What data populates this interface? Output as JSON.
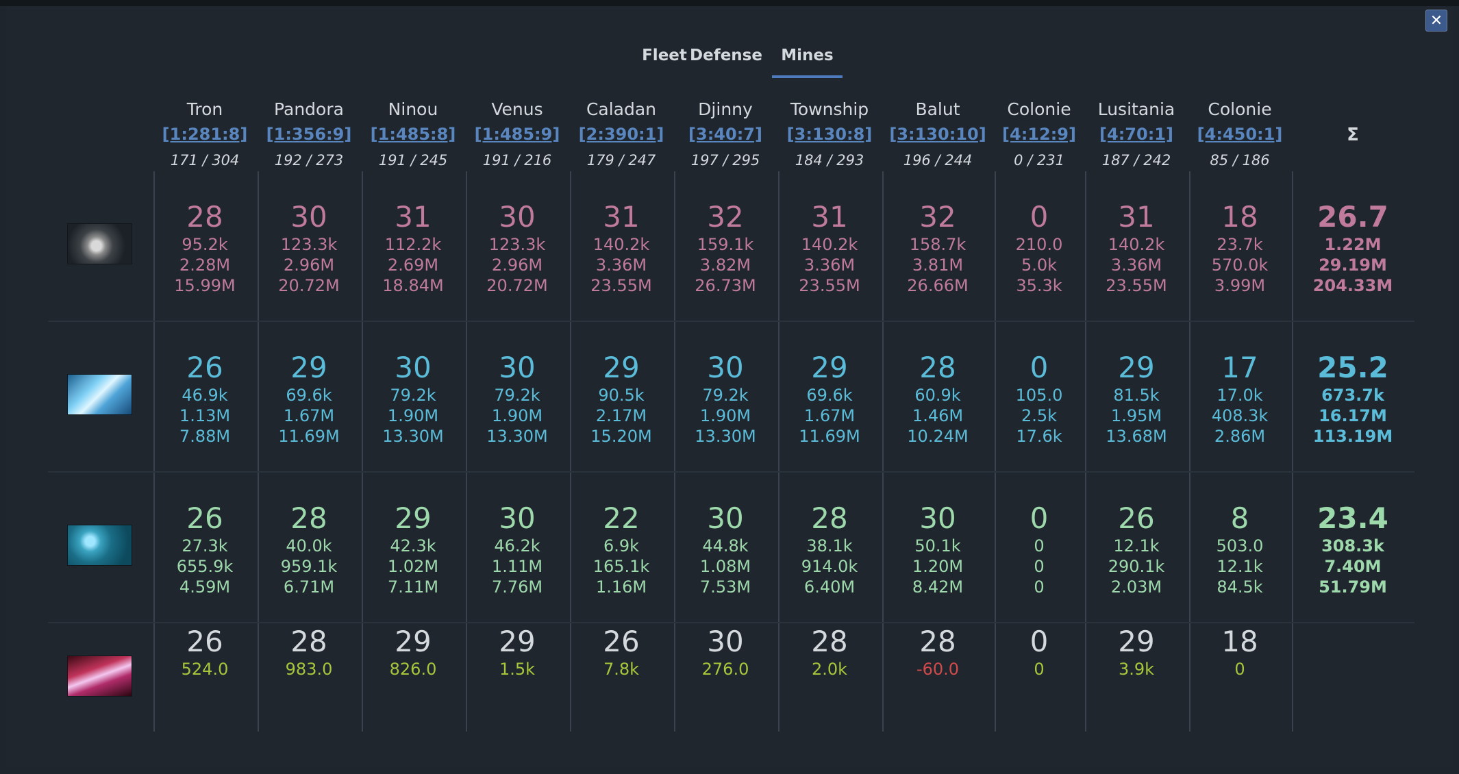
{
  "tabs": [
    "Fleet",
    "Defense",
    "Mines"
  ],
  "active_tab": "Mines",
  "close_label": "✕",
  "sigma_label": "Σ",
  "planets": [
    {
      "name": "Tron",
      "coords": "[1:281:8]",
      "fields": "171 / 304"
    },
    {
      "name": "Pandora",
      "coords": "[1:356:9]",
      "fields": "192 / 273"
    },
    {
      "name": "Ninou",
      "coords": "[1:485:8]",
      "fields": "191 / 245"
    },
    {
      "name": "Venus",
      "coords": "[1:485:9]",
      "fields": "191 / 216"
    },
    {
      "name": "Caladan",
      "coords": "[2:390:1]",
      "fields": "179 / 247"
    },
    {
      "name": "Djinny",
      "coords": "[3:40:7]",
      "fields": "197 / 295"
    },
    {
      "name": "Township",
      "coords": "[3:130:8]",
      "fields": "184 / 293"
    },
    {
      "name": "Balut",
      "coords": "[3:130:10]",
      "fields": "196 / 244"
    },
    {
      "name": "Colonie",
      "coords": "[4:12:9]",
      "fields": "0 / 231"
    },
    {
      "name": "Lusitania",
      "coords": "[4:70:1]",
      "fields": "187 / 242"
    },
    {
      "name": "Colonie",
      "coords": "[4:450:1]",
      "fields": "85 / 186"
    }
  ],
  "resources": [
    {
      "icon": "metal-ore-icon",
      "color": "#c07a9c",
      "cells": [
        {
          "level": "28",
          "lines": [
            "95.2k",
            "2.28M",
            "15.99M"
          ]
        },
        {
          "level": "30",
          "lines": [
            "123.3k",
            "2.96M",
            "20.72M"
          ]
        },
        {
          "level": "31",
          "lines": [
            "112.2k",
            "2.69M",
            "18.84M"
          ]
        },
        {
          "level": "30",
          "lines": [
            "123.3k",
            "2.96M",
            "20.72M"
          ]
        },
        {
          "level": "31",
          "lines": [
            "140.2k",
            "3.36M",
            "23.55M"
          ]
        },
        {
          "level": "32",
          "lines": [
            "159.1k",
            "3.82M",
            "26.73M"
          ]
        },
        {
          "level": "31",
          "lines": [
            "140.2k",
            "3.36M",
            "23.55M"
          ]
        },
        {
          "level": "32",
          "lines": [
            "158.7k",
            "3.81M",
            "26.66M"
          ]
        },
        {
          "level": "0",
          "lines": [
            "210.0",
            "5.0k",
            "35.3k"
          ]
        },
        {
          "level": "31",
          "lines": [
            "140.2k",
            "3.36M",
            "23.55M"
          ]
        },
        {
          "level": "18",
          "lines": [
            "23.7k",
            "570.0k",
            "3.99M"
          ]
        }
      ],
      "total": {
        "level": "26.7",
        "lines": [
          "1.22M",
          "29.19M",
          "204.33M"
        ]
      }
    },
    {
      "icon": "crystal-icon",
      "color": "#5bbcd9",
      "cells": [
        {
          "level": "26",
          "lines": [
            "46.9k",
            "1.13M",
            "7.88M"
          ]
        },
        {
          "level": "29",
          "lines": [
            "69.6k",
            "1.67M",
            "11.69M"
          ]
        },
        {
          "level": "30",
          "lines": [
            "79.2k",
            "1.90M",
            "13.30M"
          ]
        },
        {
          "level": "30",
          "lines": [
            "79.2k",
            "1.90M",
            "13.30M"
          ]
        },
        {
          "level": "29",
          "lines": [
            "90.5k",
            "2.17M",
            "15.20M"
          ]
        },
        {
          "level": "30",
          "lines": [
            "79.2k",
            "1.90M",
            "13.30M"
          ]
        },
        {
          "level": "29",
          "lines": [
            "69.6k",
            "1.67M",
            "11.69M"
          ]
        },
        {
          "level": "28",
          "lines": [
            "60.9k",
            "1.46M",
            "10.24M"
          ]
        },
        {
          "level": "0",
          "lines": [
            "105.0",
            "2.5k",
            "17.6k"
          ]
        },
        {
          "level": "29",
          "lines": [
            "81.5k",
            "1.95M",
            "13.68M"
          ]
        },
        {
          "level": "17",
          "lines": [
            "17.0k",
            "408.3k",
            "2.86M"
          ]
        }
      ],
      "total": {
        "level": "25.2",
        "lines": [
          "673.7k",
          "16.17M",
          "113.19M"
        ]
      }
    },
    {
      "icon": "deuterium-icon",
      "color": "#9ed9ac",
      "cells": [
        {
          "level": "26",
          "lines": [
            "27.3k",
            "655.9k",
            "4.59M"
          ]
        },
        {
          "level": "28",
          "lines": [
            "40.0k",
            "959.1k",
            "6.71M"
          ]
        },
        {
          "level": "29",
          "lines": [
            "42.3k",
            "1.02M",
            "7.11M"
          ]
        },
        {
          "level": "30",
          "lines": [
            "46.2k",
            "1.11M",
            "7.76M"
          ]
        },
        {
          "level": "22",
          "lines": [
            "6.9k",
            "165.1k",
            "1.16M"
          ]
        },
        {
          "level": "30",
          "lines": [
            "44.8k",
            "1.08M",
            "7.53M"
          ]
        },
        {
          "level": "28",
          "lines": [
            "38.1k",
            "914.0k",
            "6.40M"
          ]
        },
        {
          "level": "30",
          "lines": [
            "50.1k",
            "1.20M",
            "8.42M"
          ]
        },
        {
          "level": "0",
          "lines": [
            "0",
            "0",
            "0"
          ]
        },
        {
          "level": "26",
          "lines": [
            "12.1k",
            "290.1k",
            "2.03M"
          ]
        },
        {
          "level": "8",
          "lines": [
            "503.0",
            "12.1k",
            "84.5k"
          ]
        }
      ],
      "total": {
        "level": "23.4",
        "lines": [
          "308.3k",
          "7.40M",
          "51.79M"
        ]
      }
    },
    {
      "icon": "energy-icon",
      "color": "#d4d9de",
      "sub_color": "#a8c63b",
      "negative_color": "#d24a4a",
      "cells": [
        {
          "level": "26",
          "lines": [
            "524.0"
          ]
        },
        {
          "level": "28",
          "lines": [
            "983.0"
          ]
        },
        {
          "level": "29",
          "lines": [
            "826.0"
          ]
        },
        {
          "level": "29",
          "lines": [
            "1.5k"
          ]
        },
        {
          "level": "26",
          "lines": [
            "7.8k"
          ]
        },
        {
          "level": "30",
          "lines": [
            "276.0"
          ]
        },
        {
          "level": "28",
          "lines": [
            "2.0k"
          ]
        },
        {
          "level": "28",
          "lines": [
            "-60.0"
          ]
        },
        {
          "level": "0",
          "lines": [
            "0"
          ]
        },
        {
          "level": "29",
          "lines": [
            "3.9k"
          ]
        },
        {
          "level": "18",
          "lines": [
            "0"
          ]
        }
      ]
    }
  ]
}
